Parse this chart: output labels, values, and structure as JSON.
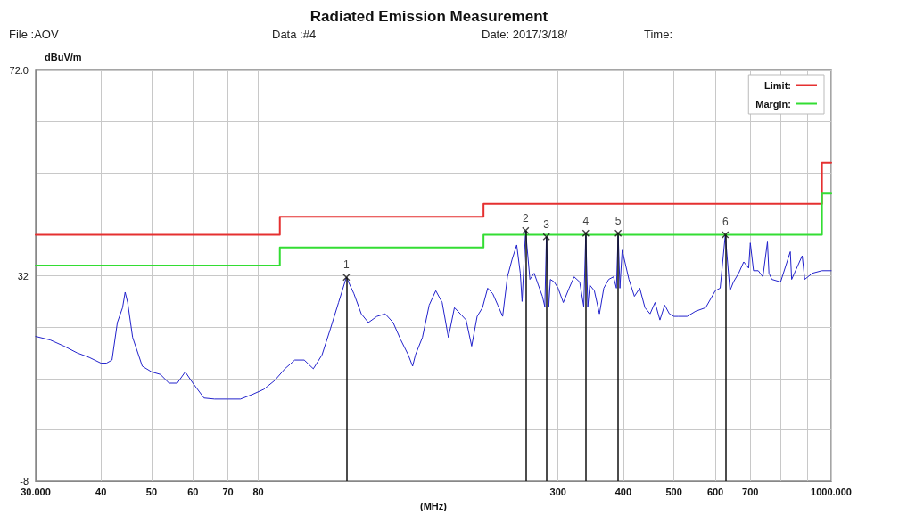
{
  "chart_data": {
    "type": "line",
    "title": "Radiated Emission Measurement",
    "annotations": [
      "File :AOV",
      "Data :#4",
      "Date: 2017/3/18/",
      "Time:",
      {
        "text": "1",
        "x": 118,
        "y": 31.7
      },
      {
        "text": "2",
        "x": 260,
        "y": 40.8
      },
      {
        "text": "3",
        "x": 285,
        "y": 39.6
      },
      {
        "text": "4",
        "x": 339,
        "y": 40.3
      },
      {
        "text": "5",
        "x": 391,
        "y": 40.3
      },
      {
        "text": "6",
        "x": 627,
        "y": 40
      }
    ],
    "xlabel": "(MHz)",
    "ylabel": "dBuV/m",
    "log": "x",
    "grid": true,
    "legend": "top right",
    "marker": "none",
    "line_style": "solid",
    "xlim": [
      30,
      1000
    ],
    "ylim": [
      -8,
      72
    ],
    "xticks": [
      {
        "value": 30,
        "label": "30.000"
      },
      40,
      50,
      60,
      70,
      80,
      {
        "value": 90,
        "label": null
      },
      {
        "value": 100,
        "label": null
      },
      {
        "value": 200,
        "label": null
      },
      300,
      400,
      500,
      600,
      700,
      {
        "value": 800,
        "label": null
      },
      {
        "value": 900,
        "label": null
      },
      {
        "value": 1000,
        "label": "1000.000"
      }
    ],
    "yticks": [
      -8,
      {
        "value": 2,
        "label": null
      },
      {
        "value": 12,
        "label": null
      },
      {
        "value": 22,
        "label": null
      },
      32,
      {
        "value": 42,
        "label": null
      },
      {
        "value": 52,
        "label": null
      },
      {
        "value": 62,
        "label": null
      },
      {
        "value": 72,
        "label": "72.0"
      }
    ],
    "series": [
      {
        "color": "#2222cc",
        "x": [
          30,
          32,
          34,
          36,
          38,
          40,
          41,
          42,
          43,
          44,
          44.5,
          45,
          46,
          48,
          50,
          52,
          54,
          56,
          58,
          60,
          63,
          66,
          70,
          74,
          78,
          82,
          86,
          90,
          94,
          98,
          102,
          106,
          110,
          114,
          118,
          122,
          126,
          130,
          135,
          140,
          145,
          150,
          155,
          158,
          160,
          165,
          170,
          175,
          180,
          185,
          190,
          195,
          200,
          205,
          210,
          215,
          220,
          225,
          230,
          235,
          240,
          245,
          250,
          254,
          256,
          260,
          265,
          270,
          275,
          280,
          283,
          285,
          288,
          290,
          295,
          300,
          307,
          315,
          322,
          330,
          336,
          339,
          342,
          345,
          352,
          360,
          367,
          375,
          383,
          388,
          391,
          394,
          398,
          410,
          420,
          430,
          440,
          450,
          460,
          470,
          480,
          490,
          500,
          510,
          530,
          550,
          575,
          600,
          613,
          627,
          640,
          650,
          665,
          680,
          695,
          700,
          710,
          725,
          740,
          755,
          760,
          770,
          800,
          835,
          840,
          880,
          890,
          920,
          960,
          1000
        ],
        "values": [
          20.2,
          19.5,
          18.3,
          17,
          16.1,
          15,
          15,
          15.6,
          22.9,
          25.8,
          28.8,
          26.8,
          20,
          14.4,
          13.3,
          12.8,
          11.1,
          11.1,
          13.3,
          11.1,
          8.2,
          8,
          8,
          8,
          8.9,
          9.9,
          11.6,
          13.9,
          15.6,
          15.6,
          13.9,
          16.6,
          21.7,
          26.8,
          31.7,
          28.5,
          24.6,
          22.9,
          24.1,
          24.6,
          22.9,
          19.5,
          16.6,
          14.4,
          16.6,
          20,
          26.3,
          29.1,
          26.8,
          20,
          25.8,
          24.6,
          23.4,
          18.3,
          24.1,
          25.8,
          29.6,
          28.5,
          26.3,
          24.1,
          31.8,
          35.2,
          38,
          32.5,
          27,
          40.8,
          31.3,
          32.5,
          30.2,
          28,
          26,
          39.6,
          26,
          31.3,
          30.8,
          29.6,
          26.8,
          29.6,
          31.8,
          30.8,
          26,
          40.3,
          26,
          30.2,
          29.1,
          24.6,
          29.6,
          31.3,
          31.8,
          29.6,
          40.3,
          29.6,
          37,
          31.3,
          28,
          29.6,
          25.8,
          24.6,
          26.8,
          23.4,
          26.3,
          24.6,
          24.1,
          24.1,
          24.1,
          25.1,
          25.8,
          29.1,
          29.6,
          40,
          29.1,
          30.8,
          32.5,
          34.7,
          33.5,
          38.4,
          33,
          33,
          31.8,
          38.6,
          32.5,
          31.3,
          30.8,
          36.7,
          31.3,
          35.9,
          31.3,
          32.5,
          33,
          33
        ]
      },
      {
        "type": "step",
        "name": "Limit:",
        "color": "#e53030",
        "x": [
          30,
          88,
          216,
          960,
          1000
        ],
        "values": [
          40,
          43.5,
          46,
          54,
          54
        ]
      },
      {
        "type": "step",
        "name": "Margin:",
        "color": "#33dd33",
        "x": [
          30,
          88,
          216,
          960,
          1000
        ],
        "values": [
          34,
          37.5,
          40,
          48,
          48
        ]
      },
      {
        "type": "lollipop",
        "color": "#111111",
        "marker": "cross",
        "x": [
          118,
          260,
          285,
          339,
          391,
          627
        ],
        "values": [
          31.7,
          40.8,
          39.6,
          40.3,
          40.3,
          40
        ]
      }
    ]
  }
}
